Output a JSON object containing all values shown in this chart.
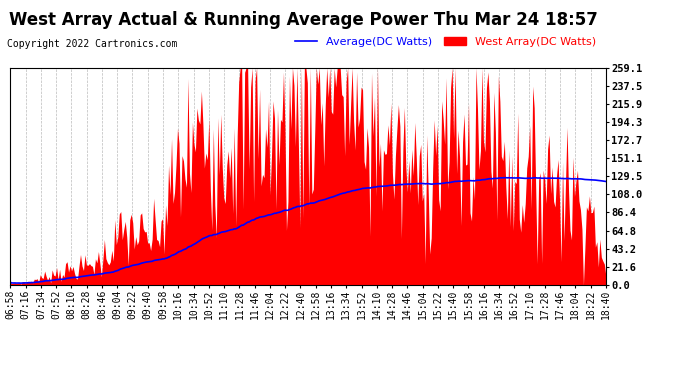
{
  "title": "West Array Actual & Running Average Power Thu Mar 24 18:57",
  "copyright": "Copyright 2022 Cartronics.com",
  "ylabel_right_values": [
    0.0,
    21.6,
    43.2,
    64.8,
    86.4,
    108.0,
    129.5,
    151.1,
    172.7,
    194.3,
    215.9,
    237.5,
    259.1
  ],
  "ymax": 259.1,
  "ymin": 0.0,
  "legend_avg_label": "Average(DC Watts)",
  "legend_west_label": "West Array(DC Watts)",
  "avg_color": "#0000ff",
  "west_color": "#ff0000",
  "background_color": "#ffffff",
  "grid_color": "#aaaaaa",
  "title_fontsize": 12,
  "tick_fontsize": 7,
  "copyright_fontsize": 7,
  "legend_fontsize": 8
}
